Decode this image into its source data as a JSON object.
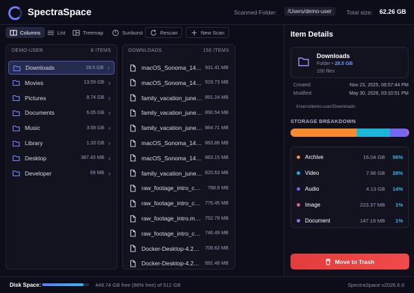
{
  "header": {
    "app_name": "SpectraSpace",
    "scanned_label": "Scanned Folder:",
    "scanned_path": "/Users/demo-user",
    "total_label": "Total size:",
    "total_size": "62.26 GB"
  },
  "toolbar": {
    "views": [
      "Columns",
      "List",
      "Treemap",
      "Sunburst"
    ],
    "actions": [
      "Rescan",
      "New Scan"
    ]
  },
  "columns": [
    {
      "title": "DEMO-USER",
      "count": "8 ITEMS",
      "rows": [
        {
          "name": "Downloads",
          "size": "28.5 GB"
        },
        {
          "name": "Movies",
          "size": "13.59 GB"
        },
        {
          "name": "Pictures",
          "size": "8.74 GB"
        },
        {
          "name": "Documents",
          "size": "6.05 GB"
        },
        {
          "name": "Music",
          "size": "3.59 GB"
        },
        {
          "name": "Library",
          "size": "1.33 GB"
        },
        {
          "name": "Desktop",
          "size": "387.43 MB"
        },
        {
          "name": "Developer",
          "size": "69 MB"
        }
      ]
    },
    {
      "title": "DOWNLOADS",
      "count": "150 ITEMS",
      "rows": [
        {
          "name": "macOS_Sonoma_14…",
          "size": "931.41 MB"
        },
        {
          "name": "macOS_Sonoma_14…",
          "size": "919.73 MB"
        },
        {
          "name": "family_vacation_june…",
          "size": "891.24 MB"
        },
        {
          "name": "family_vacation_june…",
          "size": "890.54 MB"
        },
        {
          "name": "family_vacation_june…",
          "size": "884.71 MB"
        },
        {
          "name": "macOS_Sonoma_14…",
          "size": "883.86 MB"
        },
        {
          "name": "macOS_Sonoma_14…",
          "size": "863.15 MB"
        },
        {
          "name": "family_vacation_june…",
          "size": "820.63 MB"
        },
        {
          "name": "raw_footage_intro_c…",
          "size": "788.8 MB"
        },
        {
          "name": "raw_footage_intro_c…",
          "size": "776.45 MB"
        },
        {
          "name": "raw_footage_intro.m…",
          "size": "752.79 MB"
        },
        {
          "name": "raw_footage_intro_c…",
          "size": "746.49 MB"
        },
        {
          "name": "Docker-Desktop-4.2…",
          "size": "708.62 MB"
        },
        {
          "name": "Docker-Desktop-4.2…",
          "size": "691.48 MB"
        }
      ]
    }
  ],
  "details": {
    "title": "Item Details",
    "name": "Downloads",
    "kind": "Folder",
    "size": "28.5 GB",
    "files": "150 files",
    "created_label": "Created",
    "created": "Nov 23, 2025, 06:57:44 PM",
    "modified_label": "Modified",
    "modified": "May 30, 2026, 03:10:51 PM",
    "path": "/Users/demo-user/Downloads"
  },
  "breakdown": {
    "title": "STORAGE BREAKDOWN",
    "rows": [
      {
        "name": "Archive",
        "size": "16.04 GB",
        "percent": {
          "value": 56,
          "label": "56%"
        },
        "color": "#f58a2f"
      },
      {
        "name": "Video",
        "size": "7.96 GB",
        "percent": {
          "value": 28,
          "label": "28%"
        },
        "color": "#1bb6d8"
      },
      {
        "name": "Audio",
        "size": "4.13 GB",
        "percent": {
          "value": 14,
          "label": "14%"
        },
        "color": "#7467ee"
      },
      {
        "name": "Image",
        "size": "223.37 MB",
        "percent": {
          "value": 1,
          "label": "1%"
        },
        "color": "#e35a9a"
      },
      {
        "name": "Document",
        "size": "147.19 MB",
        "percent": {
          "value": 1,
          "label": "1%"
        },
        "color": "#9b6cf0"
      }
    ]
  },
  "trash_button": "Move to Trash",
  "footer": {
    "disk_label": "Disk Space:",
    "disk_text": "449.74 GB free (88% free) of 512 GB",
    "version": "SpectraSpace v2026.6.6"
  }
}
